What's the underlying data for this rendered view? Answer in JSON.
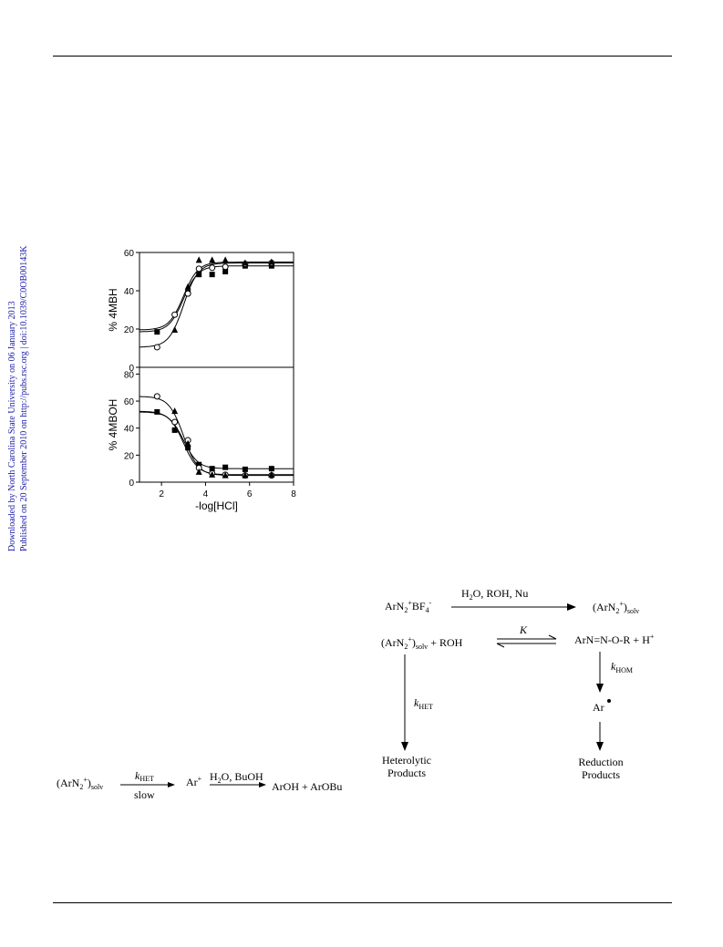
{
  "side_notes": {
    "line1": "Downloaded by North Carolina State University on 06 January 2013",
    "line2": "Published on 20 September 2010 on http://pubs.rsc.org | doi:10.1039/C0OB00143K",
    "color": "#1a1aa6"
  },
  "chart_data": [
    {
      "type": "scatter",
      "panel": "top",
      "ylabel": "% 4MBH",
      "xlim": [
        1,
        8
      ],
      "ylim": [
        0,
        60
      ],
      "yticks": [
        "0",
        "20",
        "40",
        "60"
      ],
      "series": [
        {
          "marker": "square-filled",
          "points": [
            [
              1.8,
              18.5
            ],
            [
              3.2,
              39
            ],
            [
              3.7,
              48.5
            ],
            [
              4.3,
              48.5
            ],
            [
              4.9,
              50
            ],
            [
              5.8,
              53
            ],
            [
              7.0,
              53
            ]
          ]
        },
        {
          "marker": "circle-open",
          "points": [
            [
              1.8,
              10.5
            ],
            [
              2.6,
              27.5
            ],
            [
              3.2,
              38.5
            ],
            [
              3.7,
              51.5
            ],
            [
              4.3,
              52
            ],
            [
              4.9,
              52.5
            ],
            [
              5.8,
              54
            ],
            [
              7.0,
              54.5
            ]
          ]
        },
        {
          "marker": "triangle-filled",
          "points": [
            [
              2.6,
              19.5
            ],
            [
              3.2,
              42
            ],
            [
              3.7,
              56
            ],
            [
              4.3,
              56
            ],
            [
              4.9,
              56
            ],
            [
              5.8,
              54.5
            ],
            [
              7.0,
              55
            ]
          ]
        }
      ]
    },
    {
      "type": "scatter",
      "panel": "bottom",
      "ylabel": "% 4MBOH",
      "xlabel": "-log[HCl]",
      "xlim": [
        1,
        8
      ],
      "ylim": [
        0,
        85
      ],
      "xticks": [
        "2",
        "4",
        "6",
        "8"
      ],
      "yticks": [
        "0",
        "20",
        "40",
        "60",
        "80"
      ],
      "series": [
        {
          "marker": "square-filled",
          "points": [
            [
              1.8,
              52
            ],
            [
              2.6,
              38.5
            ],
            [
              3.2,
              25.5
            ],
            [
              3.7,
              13
            ],
            [
              4.3,
              10
            ],
            [
              4.9,
              11
            ],
            [
              5.8,
              9.5
            ],
            [
              7.0,
              10
            ]
          ]
        },
        {
          "marker": "circle-open",
          "points": [
            [
              1.8,
              63.5
            ],
            [
              2.6,
              44.5
            ],
            [
              3.2,
              31
            ],
            [
              3.7,
              10.5
            ],
            [
              4.3,
              6.5
            ],
            [
              4.9,
              5.5
            ],
            [
              5.8,
              5
            ],
            [
              7.0,
              5
            ]
          ]
        },
        {
          "marker": "triangle-filled",
          "points": [
            [
              2.6,
              52.5
            ],
            [
              3.2,
              28.5
            ],
            [
              3.7,
              7.5
            ],
            [
              4.3,
              5.5
            ],
            [
              4.9,
              5
            ],
            [
              5.8,
              5
            ],
            [
              7.0,
              5.5
            ]
          ]
        }
      ]
    }
  ],
  "scheme1": {
    "reactant": "(ArN",
    "reactant_sub": "2",
    "reactant_sup": "+",
    "reactant_close": ")",
    "reactant_sub2": "solv",
    "rate_k": "k",
    "rate_sub": "HET",
    "rate_note": "slow",
    "cation": "Ar",
    "cation_sup": "+",
    "cond_h": "H",
    "cond_sub": "2",
    "cond_rest": "O, BuOH",
    "products": "ArOH + ArOBu"
  },
  "scheme2": {
    "salt_a": "ArN",
    "salt_sub": "2",
    "salt_sup": "+",
    "salt_b": "BF",
    "salt_sub2": "4",
    "salt_sup2": "-",
    "cond1_h": "H",
    "cond1_sub": "2",
    "cond1_rest": "O, ROH, Nu",
    "solv_a": "(ArN",
    "solv_sub": "2",
    "solv_sup": "+",
    "solv_close": ")",
    "solv_sub2": "solv",
    "reactant_a": "(ArN",
    "reactant_sub": "2",
    "reactant_sup": "+",
    "reactant_close": ")",
    "reactant_sub2": "solv",
    "reactant_tail": " + ROH",
    "eq_k": "K",
    "adduct": "ArN=N-O-R + H",
    "adduct_sup": "+",
    "khom": "k",
    "khom_sub": "HOM",
    "radical": "Ar",
    "khet": "k",
    "khet_sub": "HET",
    "het1": "Heterolytic",
    "het2": "Products",
    "red1": "Reduction",
    "red2": "Products"
  }
}
